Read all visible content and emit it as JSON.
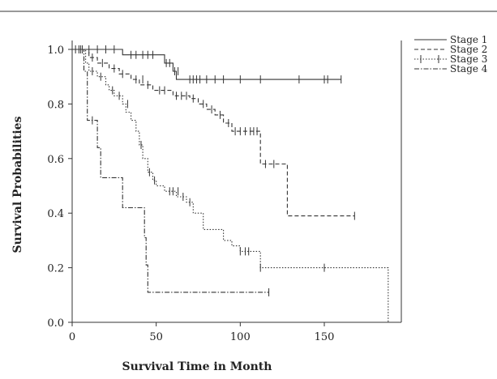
{
  "chart_data": {
    "type": "line",
    "subtype": "kaplan-meier",
    "title": "",
    "xlabel": "Survival Time in Month",
    "ylabel": "Survival Probabilities",
    "xlim": [
      0,
      190
    ],
    "ylim": [
      0,
      1.0
    ],
    "xticks": [
      0,
      50,
      100,
      150
    ],
    "yticks": [
      0.0,
      0.2,
      0.4,
      0.6,
      0.8,
      1.0
    ],
    "xtick_labels": [
      "0",
      "50",
      "100",
      "150"
    ],
    "ytick_labels": [
      "0.0",
      "0.2",
      "0.4",
      "0.6",
      "0.8",
      "1.0"
    ],
    "grid": false,
    "legend_position": "top-right",
    "series": [
      {
        "name": "Stage 1",
        "style": "solid",
        "steps": [
          [
            0,
            1.0
          ],
          [
            30,
            0.98
          ],
          [
            55,
            0.95
          ],
          [
            60,
            0.92
          ],
          [
            62,
            0.89
          ],
          [
            160,
            0.89
          ]
        ],
        "censored": [
          [
            5,
            1.0
          ],
          [
            10,
            1.0
          ],
          [
            15,
            1.0
          ],
          [
            20,
            1.0
          ],
          [
            25,
            1.0
          ],
          [
            35,
            0.98
          ],
          [
            38,
            0.98
          ],
          [
            42,
            0.98
          ],
          [
            45,
            0.98
          ],
          [
            48,
            0.98
          ],
          [
            56,
            0.95
          ],
          [
            58,
            0.95
          ],
          [
            61,
            0.92
          ],
          [
            63,
            0.92
          ],
          [
            70,
            0.89
          ],
          [
            72,
            0.89
          ],
          [
            74,
            0.89
          ],
          [
            76,
            0.89
          ],
          [
            80,
            0.89
          ],
          [
            85,
            0.89
          ],
          [
            90,
            0.89
          ],
          [
            100,
            0.89
          ],
          [
            112,
            0.89
          ],
          [
            135,
            0.89
          ],
          [
            150,
            0.89
          ],
          [
            152,
            0.89
          ],
          [
            160,
            0.89
          ]
        ]
      },
      {
        "name": "Stage 2",
        "style": "dashed",
        "steps": [
          [
            0,
            1.0
          ],
          [
            10,
            0.97
          ],
          [
            15,
            0.95
          ],
          [
            22,
            0.93
          ],
          [
            28,
            0.91
          ],
          [
            35,
            0.89
          ],
          [
            40,
            0.87
          ],
          [
            48,
            0.85
          ],
          [
            60,
            0.83
          ],
          [
            70,
            0.82
          ],
          [
            75,
            0.8
          ],
          [
            80,
            0.78
          ],
          [
            85,
            0.76
          ],
          [
            90,
            0.73
          ],
          [
            95,
            0.7
          ],
          [
            112,
            0.58
          ],
          [
            128,
            0.39
          ],
          [
            168,
            0.39
          ]
        ],
        "censored": [
          [
            12,
            0.97
          ],
          [
            18,
            0.95
          ],
          [
            25,
            0.93
          ],
          [
            30,
            0.91
          ],
          [
            38,
            0.89
          ],
          [
            42,
            0.89
          ],
          [
            45,
            0.87
          ],
          [
            52,
            0.85
          ],
          [
            55,
            0.85
          ],
          [
            62,
            0.83
          ],
          [
            65,
            0.83
          ],
          [
            68,
            0.83
          ],
          [
            72,
            0.82
          ],
          [
            78,
            0.8
          ],
          [
            83,
            0.78
          ],
          [
            88,
            0.76
          ],
          [
            93,
            0.73
          ],
          [
            97,
            0.7
          ],
          [
            100,
            0.7
          ],
          [
            103,
            0.7
          ],
          [
            106,
            0.7
          ],
          [
            108,
            0.7
          ],
          [
            110,
            0.7
          ],
          [
            115,
            0.58
          ],
          [
            120,
            0.58
          ],
          [
            168,
            0.39
          ]
        ]
      },
      {
        "name": "Stage 3",
        "style": "dotted",
        "steps": [
          [
            0,
            1.0
          ],
          [
            8,
            0.95
          ],
          [
            10,
            0.92
          ],
          [
            15,
            0.9
          ],
          [
            20,
            0.87
          ],
          [
            22,
            0.85
          ],
          [
            25,
            0.83
          ],
          [
            30,
            0.8
          ],
          [
            32,
            0.77
          ],
          [
            35,
            0.74
          ],
          [
            38,
            0.7
          ],
          [
            40,
            0.65
          ],
          [
            42,
            0.6
          ],
          [
            45,
            0.55
          ],
          [
            48,
            0.52
          ],
          [
            50,
            0.5
          ],
          [
            55,
            0.48
          ],
          [
            62,
            0.46
          ],
          [
            68,
            0.44
          ],
          [
            72,
            0.4
          ],
          [
            78,
            0.34
          ],
          [
            90,
            0.3
          ],
          [
            95,
            0.28
          ],
          [
            100,
            0.26
          ],
          [
            112,
            0.2
          ],
          [
            188,
            0.2
          ],
          [
            188,
            0.0
          ]
        ],
        "censored": [
          [
            2,
            1.0
          ],
          [
            4,
            1.0
          ],
          [
            6,
            1.0
          ],
          [
            12,
            0.92
          ],
          [
            17,
            0.9
          ],
          [
            24,
            0.85
          ],
          [
            28,
            0.83
          ],
          [
            33,
            0.8
          ],
          [
            41,
            0.65
          ],
          [
            46,
            0.55
          ],
          [
            49,
            0.52
          ],
          [
            58,
            0.48
          ],
          [
            60,
            0.48
          ],
          [
            63,
            0.48
          ],
          [
            66,
            0.46
          ],
          [
            70,
            0.44
          ],
          [
            100,
            0.26
          ],
          [
            103,
            0.26
          ],
          [
            105,
            0.26
          ],
          [
            112,
            0.2
          ],
          [
            150,
            0.2
          ]
        ]
      },
      {
        "name": "Stage 4",
        "style": "dashdot",
        "steps": [
          [
            0,
            1.0
          ],
          [
            7,
            0.92
          ],
          [
            9,
            0.74
          ],
          [
            15,
            0.64
          ],
          [
            17,
            0.53
          ],
          [
            30,
            0.42
          ],
          [
            43,
            0.31
          ],
          [
            44,
            0.21
          ],
          [
            45,
            0.11
          ],
          [
            117,
            0.11
          ]
        ],
        "censored": [
          [
            12,
            0.74
          ],
          [
            117,
            0.11
          ]
        ]
      }
    ]
  }
}
